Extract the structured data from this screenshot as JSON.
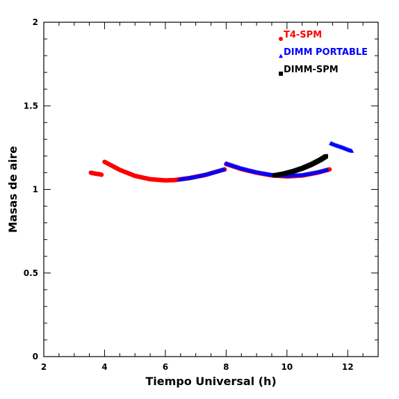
{
  "chart_data": {
    "type": "scatter",
    "title": "",
    "xlabel": "Tiempo Universal (h)",
    "ylabel": "Masas de aire",
    "xlim": [
      2,
      13
    ],
    "ylim": [
      0,
      2
    ],
    "x_ticks": [
      "2",
      "4",
      "6",
      "8",
      "10",
      "12"
    ],
    "y_ticks": [
      "0",
      "0.5",
      "1",
      "1.5",
      "2"
    ],
    "legend_position": "top-right",
    "grid": false,
    "series": [
      {
        "name": "T4-SPM",
        "marker": "circle",
        "color": "#ff0000",
        "segments": [
          {
            "x": [
              3.55,
              3.6,
              3.65,
              3.7,
              3.75,
              3.8,
              3.85,
              3.9
            ],
            "y": [
              1.1,
              1.098,
              1.096,
              1.094,
              1.093,
              1.092,
              1.09,
              1.088
            ]
          },
          {
            "x": [
              4.0,
              4.5,
              5.0,
              5.5,
              6.0,
              6.3
            ],
            "y": [
              1.165,
              1.117,
              1.081,
              1.061,
              1.054,
              1.056
            ]
          },
          {
            "x": [
              6.3,
              6.8,
              7.3,
              7.95
            ],
            "y": [
              1.056,
              1.068,
              1.086,
              1.12
            ]
          },
          {
            "x": [
              8.0,
              8.5,
              9.0,
              9.5,
              10.0,
              10.5,
              11.0,
              11.4
            ],
            "y": [
              1.152,
              1.122,
              1.1,
              1.084,
              1.078,
              1.083,
              1.1,
              1.12
            ]
          }
        ]
      },
      {
        "name": "DIMM PORTABLE",
        "marker": "triangle",
        "color": "#0000ff",
        "segments": [
          {
            "x": [
              6.45,
              6.8,
              7.3,
              7.95
            ],
            "y": [
              1.058,
              1.068,
              1.086,
              1.12
            ]
          },
          {
            "x": [
              8.0,
              8.5,
              9.0,
              9.5,
              10.0,
              10.5,
              11.0,
              11.35
            ],
            "y": [
              1.155,
              1.125,
              1.102,
              1.086,
              1.08,
              1.085,
              1.102,
              1.118
            ]
          },
          {
            "x": [
              11.45,
              11.6,
              11.8,
              12.0,
              12.15
            ],
            "y": [
              1.275,
              1.264,
              1.252,
              1.238,
              1.228
            ]
          }
        ]
      },
      {
        "name": "DIMM-SPM",
        "marker": "square",
        "color": "#000000",
        "segments": [
          {
            "x": [
              9.6,
              9.9,
              10.2,
              10.5,
              10.8,
              11.1,
              11.3
            ],
            "y": [
              1.084,
              1.094,
              1.108,
              1.126,
              1.149,
              1.177,
              1.2
            ]
          }
        ]
      }
    ]
  }
}
